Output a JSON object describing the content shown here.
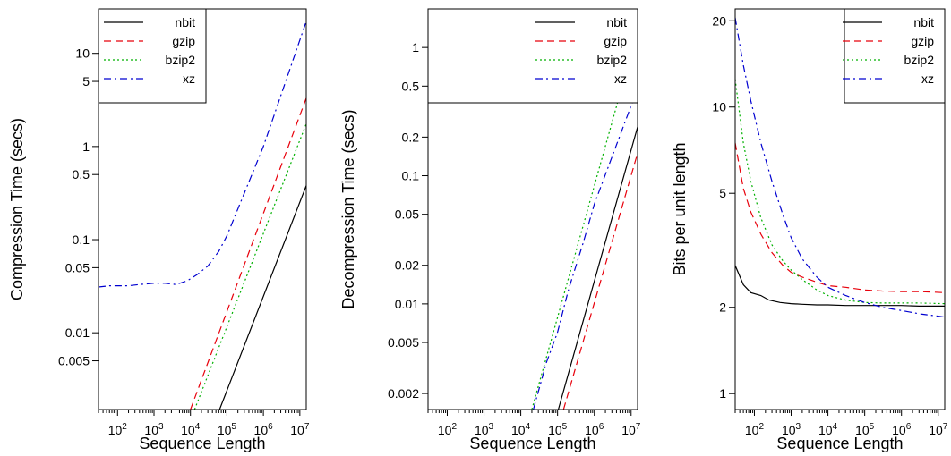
{
  "chart_data": [
    {
      "type": "line",
      "xlabel": "Sequence Length",
      "ylabel": "Compression Time (secs)",
      "x_scale": "log10",
      "y_scale": "log10",
      "xlim": [
        30,
        15000000
      ],
      "ylim": [
        0.0015,
        30
      ],
      "x_ticks": [
        {
          "value": 100,
          "label": "10^2"
        },
        {
          "value": 1000,
          "label": "10^3"
        },
        {
          "value": 10000,
          "label": "10^4"
        },
        {
          "value": 100000,
          "label": "10^5"
        },
        {
          "value": 1000000,
          "label": "10^6"
        },
        {
          "value": 10000000,
          "label": "10^7"
        }
      ],
      "y_ticks": [
        {
          "value": 0.005,
          "label": "0.005"
        },
        {
          "value": 0.01,
          "label": "0.01"
        },
        {
          "value": 0.05,
          "label": "0.05"
        },
        {
          "value": 0.1,
          "label": "0.1"
        },
        {
          "value": 0.5,
          "label": "0.5"
        },
        {
          "value": 1,
          "label": "1"
        },
        {
          "value": 5,
          "label": "5"
        },
        {
          "value": 10,
          "label": "10"
        }
      ],
      "legend": {
        "position": "top-left",
        "entries": [
          "nbit",
          "gzip",
          "bzip2",
          "xz"
        ]
      },
      "series": [
        {
          "name": "nbit",
          "color": "#000000",
          "dash": "solid",
          "x": [
            63000,
            15000000
          ],
          "y": [
            0.0015,
            0.38
          ]
        },
        {
          "name": "gzip",
          "color": "#e8000b",
          "dash": "dashed",
          "x": [
            10000,
            15000000
          ],
          "y": [
            0.0015,
            3.3
          ]
        },
        {
          "name": "bzip2",
          "color": "#00b000",
          "dash": "dotted",
          "x": [
            13000,
            15000000
          ],
          "y": [
            0.0015,
            1.75
          ]
        },
        {
          "name": "xz",
          "color": "#0000d0",
          "dash": "dashdot",
          "x": [
            30,
            60,
            100,
            200,
            400,
            1000,
            2000,
            4000,
            8000,
            15000,
            30000,
            60000,
            100000,
            1000000,
            15000000
          ],
          "y": [
            0.031,
            0.032,
            0.032,
            0.032,
            0.033,
            0.034,
            0.034,
            0.033,
            0.036,
            0.042,
            0.052,
            0.075,
            0.11,
            1.0,
            22
          ]
        }
      ]
    },
    {
      "type": "line",
      "xlabel": "Sequence Length",
      "ylabel": "Decompression Time (secs)",
      "x_scale": "log10",
      "y_scale": "log10",
      "xlim": [
        30,
        15000000
      ],
      "ylim": [
        0.0015,
        2
      ],
      "x_ticks": [
        {
          "value": 100,
          "label": "10^2"
        },
        {
          "value": 1000,
          "label": "10^3"
        },
        {
          "value": 10000,
          "label": "10^4"
        },
        {
          "value": 100000,
          "label": "10^5"
        },
        {
          "value": 1000000,
          "label": "10^6"
        },
        {
          "value": 10000000,
          "label": "10^7"
        }
      ],
      "y_ticks": [
        {
          "value": 0.002,
          "label": "0.002"
        },
        {
          "value": 0.005,
          "label": "0.005"
        },
        {
          "value": 0.01,
          "label": "0.01"
        },
        {
          "value": 0.02,
          "label": "0.02"
        },
        {
          "value": 0.05,
          "label": "0.05"
        },
        {
          "value": 0.1,
          "label": "0.1"
        },
        {
          "value": 0.2,
          "label": "0.2"
        },
        {
          "value": 0.5,
          "label": "0.5"
        },
        {
          "value": 1,
          "label": "1"
        }
      ],
      "legend": {
        "position": "top-right",
        "entries": [
          "nbit",
          "gzip",
          "bzip2",
          "xz"
        ]
      },
      "series": [
        {
          "name": "nbit",
          "color": "#000000",
          "dash": "solid",
          "x": [
            105000,
            15000000
          ],
          "y": [
            0.0015,
            0.24
          ]
        },
        {
          "name": "gzip",
          "color": "#e8000b",
          "dash": "dashed",
          "x": [
            145000,
            15000000
          ],
          "y": [
            0.0015,
            0.15
          ]
        },
        {
          "name": "bzip2",
          "color": "#00b000",
          "dash": "dotted",
          "x": [
            20000,
            15000000
          ],
          "y": [
            0.0015,
            1.35
          ]
        },
        {
          "name": "xz",
          "color": "#0000d0",
          "dash": "dashdot",
          "x": [
            22000,
            50000,
            100000,
            200000,
            500000,
            1000000,
            15000000
          ],
          "y": [
            0.0015,
            0.0035,
            0.006,
            0.013,
            0.03,
            0.06,
            0.48
          ]
        }
      ]
    },
    {
      "type": "line",
      "xlabel": "Sequence Length",
      "ylabel": "Bits per unit length",
      "x_scale": "log10",
      "y_scale": "log10",
      "xlim": [
        30,
        15000000
      ],
      "ylim": [
        0.88,
        22
      ],
      "x_ticks": [
        {
          "value": 100,
          "label": "10^2"
        },
        {
          "value": 1000,
          "label": "10^3"
        },
        {
          "value": 10000,
          "label": "10^4"
        },
        {
          "value": 100000,
          "label": "10^5"
        },
        {
          "value": 1000000,
          "label": "10^6"
        },
        {
          "value": 10000000,
          "label": "10^7"
        }
      ],
      "y_ticks": [
        {
          "value": 1,
          "label": "1"
        },
        {
          "value": 2,
          "label": "2"
        },
        {
          "value": 5,
          "label": "5"
        },
        {
          "value": 10,
          "label": "10"
        },
        {
          "value": 20,
          "label": "20"
        }
      ],
      "legend": {
        "position": "top-right",
        "entries": [
          "nbit",
          "gzip",
          "bzip2",
          "xz"
        ]
      },
      "series": [
        {
          "name": "nbit",
          "color": "#000000",
          "dash": "solid",
          "x": [
            30,
            50,
            80,
            150,
            250,
            500,
            1000,
            2000,
            5000,
            10000,
            30000,
            100000,
            300000,
            1000000,
            3000000,
            15000000
          ],
          "y": [
            2.8,
            2.4,
            2.25,
            2.2,
            2.12,
            2.08,
            2.06,
            2.05,
            2.04,
            2.04,
            2.03,
            2.03,
            2.03,
            2.03,
            2.02,
            2.02
          ]
        },
        {
          "name": "gzip",
          "color": "#e8000b",
          "dash": "dashed",
          "x": [
            30,
            50,
            80,
            150,
            300,
            600,
            1000,
            2000,
            5000,
            10000,
            30000,
            100000,
            300000,
            1000000,
            3000000,
            15000000
          ],
          "y": [
            7.5,
            5.2,
            4.3,
            3.6,
            3.1,
            2.8,
            2.65,
            2.55,
            2.45,
            2.38,
            2.35,
            2.3,
            2.28,
            2.27,
            2.27,
            2.25
          ]
        },
        {
          "name": "bzip2",
          "color": "#00b000",
          "dash": "dotted",
          "x": [
            30,
            50,
            80,
            150,
            300,
            600,
            1000,
            2000,
            5000,
            10000,
            30000,
            100000,
            300000,
            1000000,
            3000000,
            15000000
          ],
          "y": [
            12.5,
            7.5,
            5.5,
            4.1,
            3.3,
            2.9,
            2.7,
            2.5,
            2.3,
            2.2,
            2.12,
            2.08,
            2.07,
            2.07,
            2.07,
            2.06
          ]
        },
        {
          "name": "xz",
          "color": "#0000d0",
          "dash": "dashdot",
          "x": [
            30,
            50,
            80,
            150,
            300,
            600,
            1000,
            2000,
            5000,
            10000,
            30000,
            100000,
            300000,
            1000000,
            3000000,
            15000000
          ],
          "y": [
            20.5,
            14,
            10.5,
            7.5,
            5.5,
            4.2,
            3.5,
            2.95,
            2.55,
            2.35,
            2.2,
            2.08,
            2.0,
            1.95,
            1.9,
            1.85
          ]
        }
      ]
    }
  ]
}
